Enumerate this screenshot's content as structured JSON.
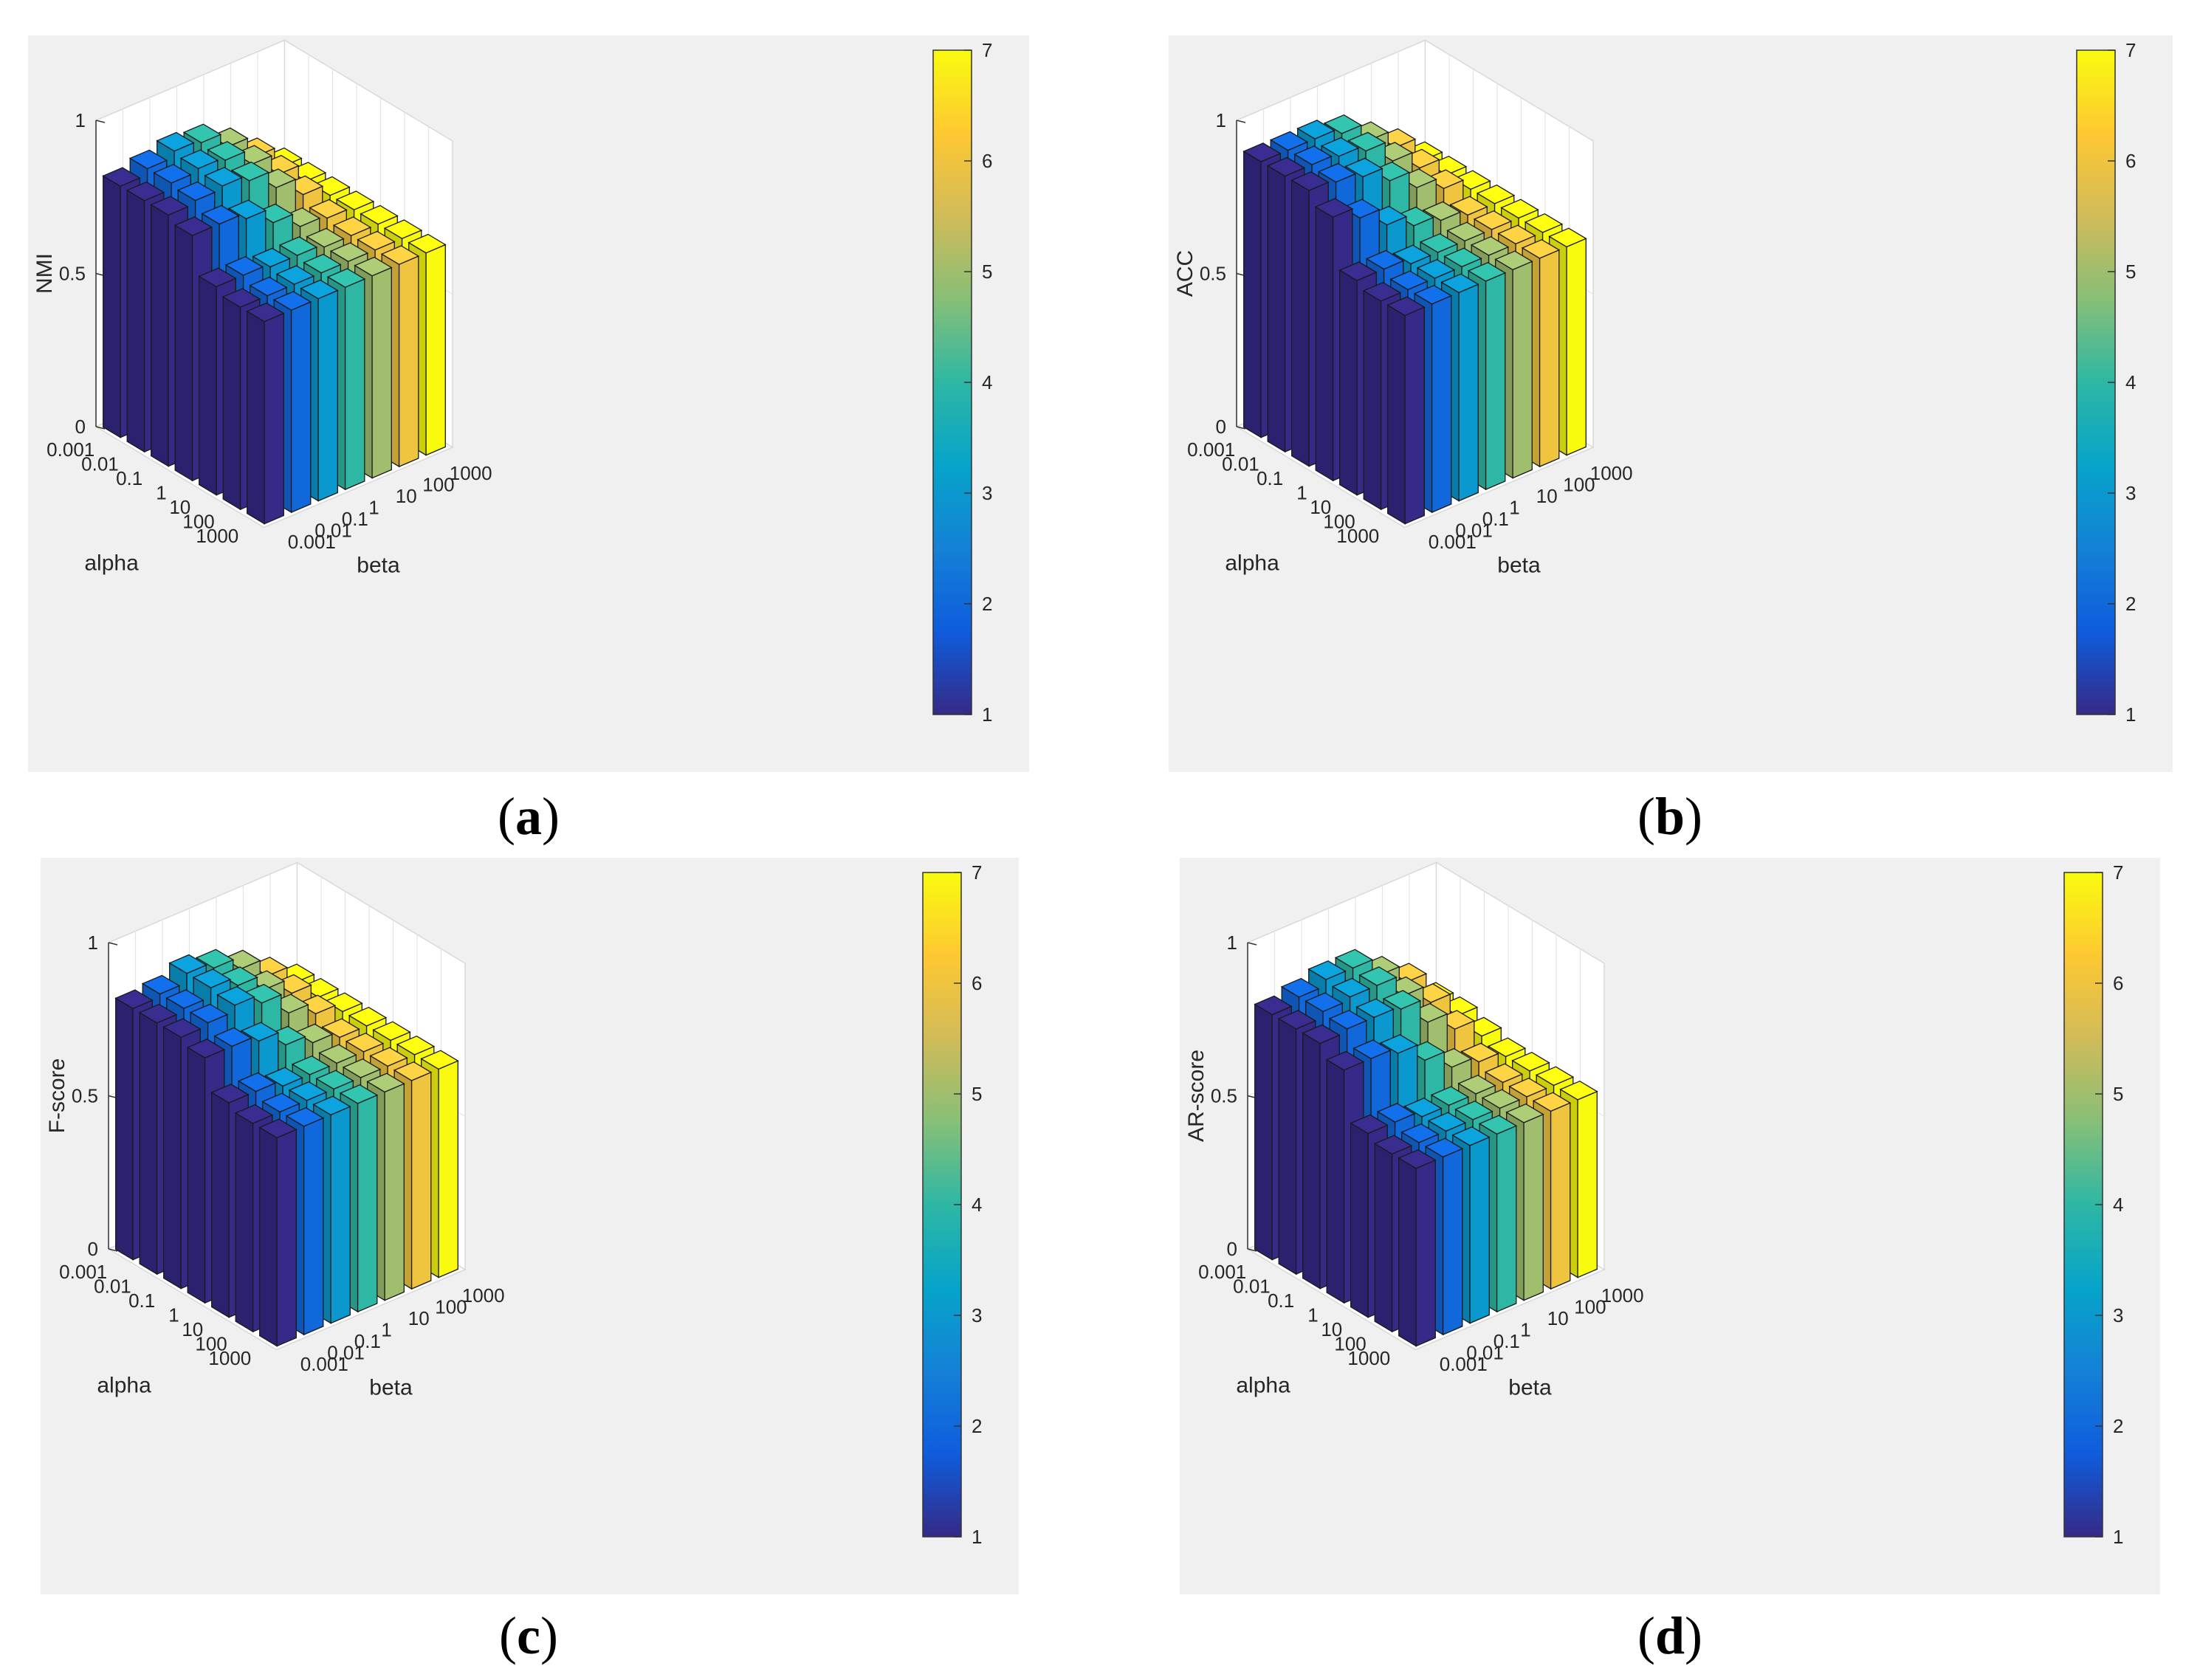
{
  "figure": {
    "captions": [
      "a",
      "b",
      "c",
      "d"
    ]
  },
  "shared": {
    "alpha_ticks": [
      "0.001",
      "0.01",
      "0.1",
      "1",
      "10",
      "100",
      "1000"
    ],
    "beta_ticks": [
      "0.001",
      "0.01",
      "0.1",
      "1",
      "10",
      "100",
      "1000"
    ],
    "z_ticks": [
      "0",
      "0.5",
      "1"
    ],
    "colorbar_ticks": [
      "1",
      "2",
      "3",
      "4",
      "5",
      "6",
      "7"
    ],
    "xlabel": "alpha",
    "ylabel": "beta",
    "colormap": [
      "#352a87",
      "#0f5cdd",
      "#1481d6",
      "#06a4ca",
      "#2eb7a4",
      "#87bf77",
      "#d1bb59",
      "#fec832",
      "#f9fb0e"
    ]
  },
  "chart_data": [
    {
      "type": "bar3d",
      "zlabel": "NMI",
      "zlim": [
        0,
        1
      ],
      "alpha": [
        "0.001",
        "0.01",
        "0.1",
        "1",
        "10",
        "100",
        "1000"
      ],
      "beta": [
        "0.001",
        "0.01",
        "0.1",
        "1",
        "10",
        "100",
        "1000"
      ],
      "values": [
        [
          0.82,
          0.84,
          0.86,
          0.85,
          0.8,
          0.73,
          0.66
        ],
        [
          0.82,
          0.84,
          0.85,
          0.84,
          0.79,
          0.72,
          0.66
        ],
        [
          0.82,
          0.83,
          0.84,
          0.82,
          0.76,
          0.7,
          0.66
        ],
        [
          0.8,
          0.8,
          0.78,
          0.73,
          0.68,
          0.67,
          0.66
        ],
        [
          0.68,
          0.68,
          0.67,
          0.67,
          0.66,
          0.66,
          0.66
        ],
        [
          0.66,
          0.66,
          0.66,
          0.66,
          0.66,
          0.66,
          0.66
        ],
        [
          0.66,
          0.66,
          0.66,
          0.66,
          0.66,
          0.66,
          0.66
        ]
      ]
    },
    {
      "type": "bar3d",
      "zlabel": "ACC",
      "zlim": [
        0,
        1
      ],
      "alpha": [
        "0.001",
        "0.01",
        "0.1",
        "1",
        "10",
        "100",
        "1000"
      ],
      "beta": [
        "0.001",
        "0.01",
        "0.1",
        "1",
        "10",
        "100",
        "1000"
      ],
      "values": [
        [
          0.9,
          0.9,
          0.9,
          0.88,
          0.82,
          0.76,
          0.68
        ],
        [
          0.9,
          0.9,
          0.89,
          0.87,
          0.8,
          0.74,
          0.68
        ],
        [
          0.9,
          0.89,
          0.87,
          0.82,
          0.76,
          0.72,
          0.68
        ],
        [
          0.86,
          0.82,
          0.76,
          0.72,
          0.7,
          0.68,
          0.68
        ],
        [
          0.7,
          0.7,
          0.68,
          0.68,
          0.68,
          0.68,
          0.68
        ],
        [
          0.68,
          0.68,
          0.68,
          0.68,
          0.68,
          0.68,
          0.68
        ],
        [
          0.68,
          0.68,
          0.68,
          0.68,
          0.68,
          0.68,
          0.68
        ]
      ]
    },
    {
      "type": "bar3d",
      "zlabel": "F-score",
      "zlim": [
        0,
        1
      ],
      "alpha": [
        "0.001",
        "0.01",
        "0.1",
        "1",
        "10",
        "100",
        "1000"
      ],
      "beta": [
        "0.001",
        "0.01",
        "0.1",
        "1",
        "10",
        "100",
        "1000"
      ],
      "values": [
        [
          0.82,
          0.83,
          0.86,
          0.84,
          0.8,
          0.74,
          0.68
        ],
        [
          0.82,
          0.83,
          0.86,
          0.83,
          0.78,
          0.73,
          0.68
        ],
        [
          0.82,
          0.83,
          0.85,
          0.82,
          0.75,
          0.71,
          0.68
        ],
        [
          0.8,
          0.8,
          0.78,
          0.73,
          0.7,
          0.68,
          0.68
        ],
        [
          0.7,
          0.7,
          0.68,
          0.68,
          0.68,
          0.68,
          0.68
        ],
        [
          0.68,
          0.68,
          0.68,
          0.68,
          0.68,
          0.68,
          0.68
        ],
        [
          0.68,
          0.68,
          0.68,
          0.68,
          0.68,
          0.68,
          0.68
        ]
      ]
    },
    {
      "type": "bar3d",
      "zlabel": "AR-score",
      "zlim": [
        0,
        1
      ],
      "alpha": [
        "0.001",
        "0.01",
        "0.1",
        "1",
        "10",
        "100",
        "1000"
      ],
      "beta": [
        "0.001",
        "0.01",
        "0.1",
        "1",
        "10",
        "100",
        "1000"
      ],
      "values": [
        [
          0.8,
          0.82,
          0.84,
          0.84,
          0.78,
          0.72,
          0.62
        ],
        [
          0.8,
          0.82,
          0.83,
          0.83,
          0.76,
          0.7,
          0.62
        ],
        [
          0.8,
          0.81,
          0.81,
          0.8,
          0.72,
          0.66,
          0.6
        ],
        [
          0.76,
          0.76,
          0.74,
          0.68,
          0.62,
          0.6,
          0.58
        ],
        [
          0.6,
          0.6,
          0.58,
          0.58,
          0.58,
          0.58,
          0.58
        ],
        [
          0.58,
          0.58,
          0.58,
          0.58,
          0.58,
          0.58,
          0.58
        ],
        [
          0.58,
          0.58,
          0.58,
          0.58,
          0.58,
          0.58,
          0.58
        ]
      ]
    }
  ]
}
